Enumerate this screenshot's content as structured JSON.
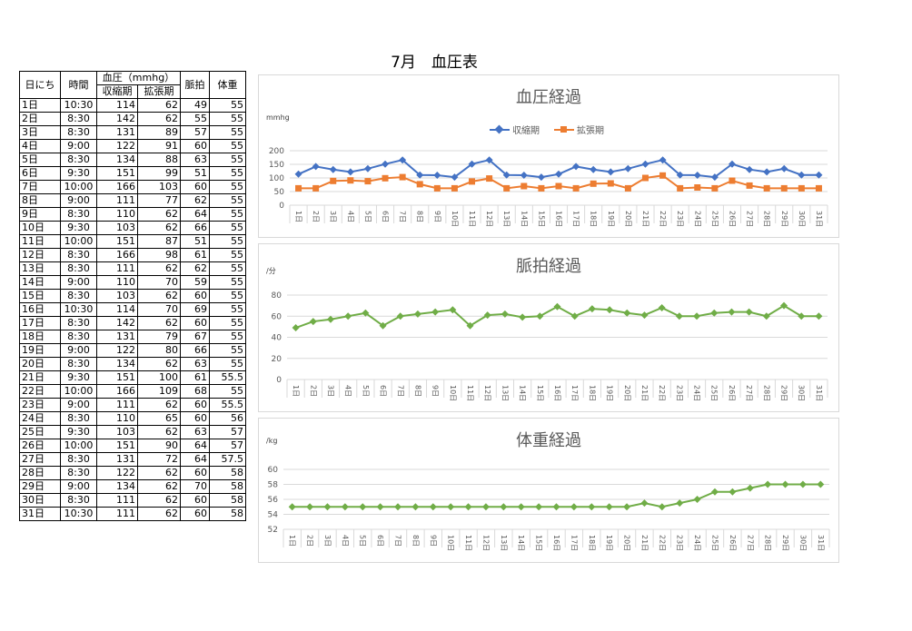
{
  "page": {
    "title": "7月　血圧表"
  },
  "table": {
    "headers": {
      "day": "日にち",
      "time": "時間",
      "bp_group": "血圧（mmhg）",
      "systolic": "収縮期",
      "diastolic": "拡張期",
      "pulse": "脈拍",
      "weight": "体重"
    },
    "rows": [
      [
        "1日",
        "10:30",
        "114",
        "62",
        "49",
        "55"
      ],
      [
        "2日",
        "8:30",
        "142",
        "62",
        "55",
        "55"
      ],
      [
        "3日",
        "8:30",
        "131",
        "89",
        "57",
        "55"
      ],
      [
        "4日",
        "9:00",
        "122",
        "91",
        "60",
        "55"
      ],
      [
        "5日",
        "8:30",
        "134",
        "88",
        "63",
        "55"
      ],
      [
        "6日",
        "9:30",
        "151",
        "99",
        "51",
        "55"
      ],
      [
        "7日",
        "10:00",
        "166",
        "103",
        "60",
        "55"
      ],
      [
        "8日",
        "9:00",
        "111",
        "77",
        "62",
        "55"
      ],
      [
        "9日",
        "8:30",
        "110",
        "62",
        "64",
        "55"
      ],
      [
        "10日",
        "9:30",
        "103",
        "62",
        "66",
        "55"
      ],
      [
        "11日",
        "10:00",
        "151",
        "87",
        "51",
        "55"
      ],
      [
        "12日",
        "8:30",
        "166",
        "98",
        "61",
        "55"
      ],
      [
        "13日",
        "8:30",
        "111",
        "62",
        "62",
        "55"
      ],
      [
        "14日",
        "9:00",
        "110",
        "70",
        "59",
        "55"
      ],
      [
        "15日",
        "8:30",
        "103",
        "62",
        "60",
        "55"
      ],
      [
        "16日",
        "10:30",
        "114",
        "70",
        "69",
        "55"
      ],
      [
        "17日",
        "8:30",
        "142",
        "62",
        "60",
        "55"
      ],
      [
        "18日",
        "8:30",
        "131",
        "79",
        "67",
        "55"
      ],
      [
        "19日",
        "9:00",
        "122",
        "80",
        "66",
        "55"
      ],
      [
        "20日",
        "8:30",
        "134",
        "62",
        "63",
        "55"
      ],
      [
        "21日",
        "9:30",
        "151",
        "100",
        "61",
        "55.5"
      ],
      [
        "22日",
        "10:00",
        "166",
        "109",
        "68",
        "55"
      ],
      [
        "23日",
        "9:00",
        "111",
        "62",
        "60",
        "55.5"
      ],
      [
        "24日",
        "8:30",
        "110",
        "65",
        "60",
        "56"
      ],
      [
        "25日",
        "9:30",
        "103",
        "62",
        "63",
        "57"
      ],
      [
        "26日",
        "10:00",
        "151",
        "90",
        "64",
        "57"
      ],
      [
        "27日",
        "8:30",
        "131",
        "72",
        "64",
        "57.5"
      ],
      [
        "28日",
        "8:30",
        "122",
        "62",
        "60",
        "58"
      ],
      [
        "29日",
        "9:00",
        "134",
        "62",
        "70",
        "58"
      ],
      [
        "30日",
        "8:30",
        "111",
        "62",
        "60",
        "58"
      ],
      [
        "31日",
        "10:30",
        "111",
        "62",
        "60",
        "58"
      ]
    ]
  },
  "chart_data": [
    {
      "type": "line",
      "title": "血圧経過",
      "ylabel": "mmhg",
      "ylim": [
        0,
        200
      ],
      "yticks": [
        0,
        50,
        100,
        150,
        200
      ],
      "grid": true,
      "legend": "top",
      "categories": [
        "1日",
        "2日",
        "3日",
        "4日",
        "5日",
        "6日",
        "7日",
        "8日",
        "9日",
        "10日",
        "11日",
        "12日",
        "13日",
        "14日",
        "15日",
        "16日",
        "17日",
        "18日",
        "19日",
        "20日",
        "21日",
        "22日",
        "23日",
        "24日",
        "25日",
        "26日",
        "27日",
        "28日",
        "29日",
        "30日",
        "31日"
      ],
      "series": [
        {
          "name": "収縮期",
          "color": "#4472c4",
          "marker": "diamond",
          "values": [
            114,
            142,
            131,
            122,
            134,
            151,
            166,
            111,
            110,
            103,
            151,
            166,
            111,
            110,
            103,
            114,
            142,
            131,
            122,
            134,
            151,
            166,
            111,
            110,
            103,
            151,
            131,
            122,
            134,
            111,
            111
          ]
        },
        {
          "name": "拡張期",
          "color": "#ed7d31",
          "marker": "square",
          "values": [
            62,
            62,
            89,
            91,
            88,
            99,
            103,
            77,
            62,
            62,
            87,
            98,
            62,
            70,
            62,
            70,
            62,
            79,
            80,
            62,
            100,
            109,
            62,
            65,
            62,
            90,
            72,
            62,
            62,
            62,
            62
          ]
        }
      ]
    },
    {
      "type": "line",
      "title": "脈拍経過",
      "ylabel": "/分",
      "ylim": [
        0,
        80
      ],
      "yticks": [
        0,
        20,
        40,
        60,
        80
      ],
      "grid": true,
      "categories": [
        "1日",
        "2日",
        "3日",
        "4日",
        "5日",
        "6日",
        "7日",
        "8日",
        "9日",
        "10日",
        "11日",
        "12日",
        "13日",
        "14日",
        "15日",
        "16日",
        "17日",
        "18日",
        "19日",
        "20日",
        "21日",
        "22日",
        "23日",
        "24日",
        "25日",
        "26日",
        "27日",
        "28日",
        "29日",
        "30日",
        "31日"
      ],
      "series": [
        {
          "color": "#70ad47",
          "marker": "diamond",
          "values": [
            49,
            55,
            57,
            60,
            63,
            51,
            60,
            62,
            64,
            66,
            51,
            61,
            62,
            59,
            60,
            69,
            60,
            67,
            66,
            63,
            61,
            68,
            60,
            60,
            63,
            64,
            64,
            60,
            70,
            60,
            60
          ]
        }
      ]
    },
    {
      "type": "line",
      "title": "体重経過",
      "ylabel": "/kg",
      "ylim": [
        52,
        60
      ],
      "yticks": [
        52,
        54,
        56,
        58,
        60
      ],
      "grid": true,
      "categories": [
        "1日",
        "2日",
        "3日",
        "4日",
        "5日",
        "6日",
        "7日",
        "8日",
        "9日",
        "10日",
        "11日",
        "12日",
        "13日",
        "14日",
        "15日",
        "16日",
        "17日",
        "18日",
        "19日",
        "20日",
        "21日",
        "22日",
        "23日",
        "24日",
        "25日",
        "26日",
        "27日",
        "28日",
        "29日",
        "30日",
        "31日"
      ],
      "series": [
        {
          "color": "#70ad47",
          "marker": "diamond",
          "values": [
            55,
            55,
            55,
            55,
            55,
            55,
            55,
            55,
            55,
            55,
            55,
            55,
            55,
            55,
            55,
            55,
            55,
            55,
            55,
            55,
            55.5,
            55,
            55.5,
            56,
            57,
            57,
            57.5,
            58,
            58,
            58,
            58
          ]
        }
      ]
    }
  ]
}
